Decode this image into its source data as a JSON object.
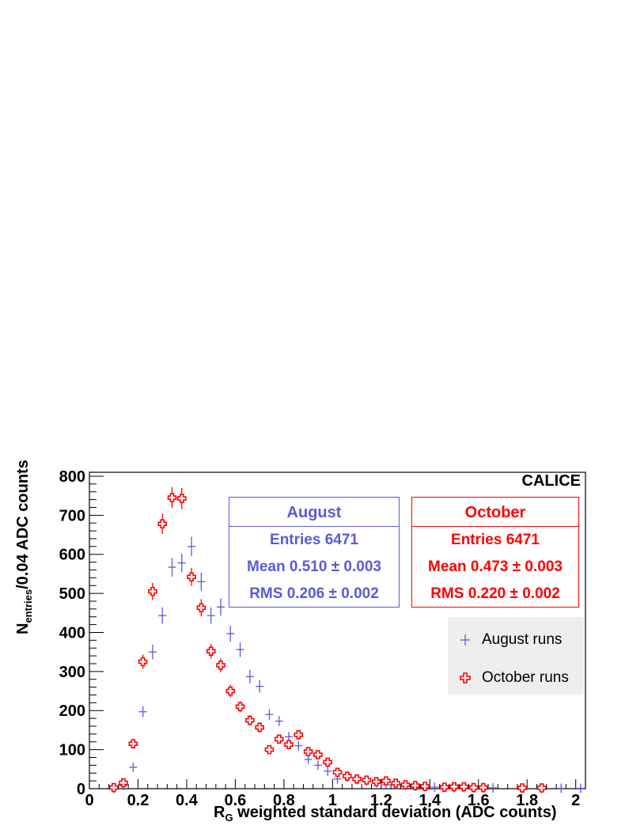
{
  "chart_data": {
    "type": "scatter",
    "xlabel_main": "R",
    "xlabel_sub": "G",
    "xlabel_rest": " weighted standard deviation (ADC counts)",
    "ylabel_main": "N",
    "ylabel_sub": "entries",
    "ylabel_rest": "/0.04 ADC counts",
    "xlim": [
      0,
      2.04
    ],
    "ylim": [
      0,
      810
    ],
    "xticks": [
      "0",
      "0.2",
      "0.4",
      "0.6",
      "0.8",
      "1",
      "1.2",
      "1.4",
      "1.6",
      "1.8",
      "2"
    ],
    "xtick_values": [
      0,
      0.2,
      0.4,
      0.6,
      0.8,
      1.0,
      1.2,
      1.4,
      1.6,
      1.8,
      2.0
    ],
    "yticks": [
      "0",
      "100",
      "200",
      "300",
      "400",
      "500",
      "600",
      "700",
      "800"
    ],
    "ytick_values": [
      0,
      100,
      200,
      300,
      400,
      500,
      600,
      700,
      800
    ],
    "experiment_label": "CALICE",
    "series": [
      {
        "name": "August runs",
        "color": "#5a5adc",
        "marker": "cross",
        "x": [
          0.1,
          0.14,
          0.18,
          0.22,
          0.26,
          0.3,
          0.34,
          0.38,
          0.42,
          0.46,
          0.5,
          0.54,
          0.58,
          0.62,
          0.66,
          0.7,
          0.74,
          0.78,
          0.82,
          0.86,
          0.9,
          0.94,
          0.98,
          1.02,
          1.06,
          1.1,
          1.14,
          1.18,
          1.22,
          1.26,
          1.3,
          1.34,
          1.38,
          1.42,
          1.46,
          1.5,
          1.54,
          1.58,
          1.62,
          1.66,
          1.78,
          1.86,
          1.94,
          2.02
        ],
        "y": [
          1,
          8,
          55,
          197,
          350,
          443,
          567,
          578,
          620,
          530,
          443,
          465,
          397,
          356,
          287,
          262,
          190,
          173,
          133,
          110,
          75,
          60,
          45,
          25,
          30,
          23,
          20,
          15,
          10,
          12,
          8,
          7,
          5,
          4,
          3,
          2,
          3,
          2,
          2,
          2,
          1,
          1,
          1,
          1
        ],
        "err": [
          1,
          3,
          7,
          14,
          19,
          21,
          24,
          24,
          25,
          23,
          21,
          22,
          20,
          19,
          17,
          16,
          14,
          13,
          12,
          10,
          9,
          8,
          7,
          5,
          5,
          5,
          4,
          4,
          3,
          3,
          3,
          3,
          2,
          2,
          2,
          1,
          2,
          1,
          1,
          1,
          1,
          1,
          1,
          1
        ]
      },
      {
        "name": "October runs",
        "color": "#ff0000",
        "marker": "open-cross",
        "x": [
          0.1,
          0.14,
          0.18,
          0.22,
          0.26,
          0.3,
          0.34,
          0.38,
          0.42,
          0.46,
          0.5,
          0.54,
          0.58,
          0.62,
          0.66,
          0.7,
          0.74,
          0.78,
          0.82,
          0.86,
          0.9,
          0.94,
          0.98,
          1.02,
          1.06,
          1.1,
          1.14,
          1.18,
          1.22,
          1.26,
          1.3,
          1.34,
          1.38,
          1.46,
          1.5,
          1.54,
          1.58,
          1.62,
          1.78,
          1.86
        ],
        "y": [
          3,
          15,
          115,
          325,
          505,
          678,
          745,
          743,
          542,
          463,
          352,
          316,
          250,
          210,
          175,
          157,
          100,
          127,
          113,
          138,
          95,
          87,
          68,
          42,
          32,
          25,
          22,
          18,
          20,
          14,
          10,
          8,
          6,
          4,
          5,
          5,
          3,
          3,
          2,
          2
        ],
        "err": [
          2,
          4,
          11,
          18,
          22,
          26,
          27,
          27,
          23,
          22,
          19,
          18,
          16,
          14,
          13,
          13,
          10,
          11,
          11,
          12,
          10,
          9,
          8,
          6,
          6,
          5,
          5,
          4,
          4,
          4,
          3,
          3,
          2,
          2,
          2,
          2,
          2,
          2,
          1,
          1
        ]
      }
    ]
  },
  "stats": {
    "august": {
      "title": "August",
      "entries": "Entries 6471",
      "mean": "Mean 0.510 ± 0.003",
      "rms": "RMS 0.206 ± 0.002"
    },
    "october": {
      "title": "October",
      "entries": "Entries 6471",
      "mean": "Mean 0.473 ± 0.003",
      "rms": "RMS 0.220 ± 0.002"
    }
  },
  "legend": {
    "august_label": "August runs",
    "october_label": "October runs"
  }
}
